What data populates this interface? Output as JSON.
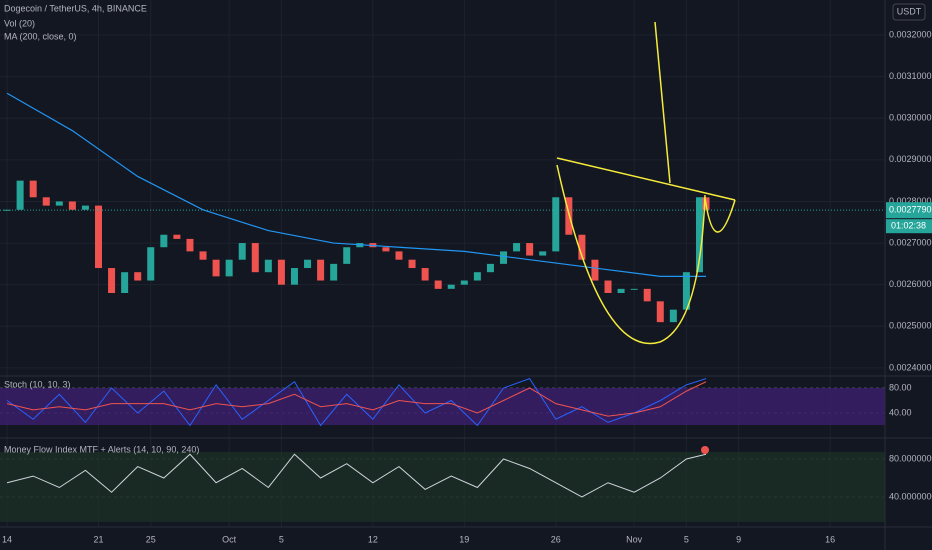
{
  "chart_data": [
    {
      "type": "candlestick",
      "title": "Dogecoin / TetherUS, 4h, BINANCE",
      "legend": [
        "Vol (20)",
        "MA (200, close, 0)"
      ],
      "currency": "USDT",
      "last_price": {
        "value": 0.002779,
        "label": "0.0027790"
      },
      "countdown": "01:02:38",
      "up_color": "#26a69a",
      "down_color": "#ef5350",
      "x": [
        0,
        1,
        2,
        3,
        4,
        5,
        6,
        7,
        8,
        9,
        10,
        11,
        12,
        13,
        14,
        15,
        16,
        17,
        18,
        19,
        20,
        21,
        22,
        23,
        24,
        25,
        26,
        27,
        28,
        29,
        30,
        31,
        32,
        33,
        34,
        35,
        36,
        37,
        38,
        39,
        40,
        41,
        42,
        43,
        44,
        45,
        46,
        47,
        48,
        49,
        50,
        51,
        52,
        53,
        53.5
      ],
      "close": [
        0.00278,
        0.00285,
        0.00281,
        0.00279,
        0.0028,
        0.00278,
        0.00279,
        0.00264,
        0.00258,
        0.00263,
        0.00261,
        0.00269,
        0.00272,
        0.00271,
        0.00268,
        0.00266,
        0.00262,
        0.00266,
        0.0027,
        0.00263,
        0.00266,
        0.0026,
        0.00264,
        0.00266,
        0.00261,
        0.00265,
        0.00269,
        0.0027,
        0.00269,
        0.00268,
        0.00266,
        0.00264,
        0.00261,
        0.00259,
        0.0026,
        0.00261,
        0.00263,
        0.00265,
        0.00268,
        0.0027,
        0.00267,
        0.00268,
        0.00281,
        0.00272,
        0.00266,
        0.00261,
        0.00258,
        0.00259,
        0.00259,
        0.00256,
        0.00251,
        0.00254,
        0.00263,
        0.00281,
        0.00278
      ],
      "ma": {
        "color": "#2196f3",
        "x": [
          0,
          5,
          10,
          15,
          20,
          25,
          30,
          35,
          40,
          45,
          50,
          53.5
        ],
        "values": [
          0.00306,
          0.00297,
          0.00286,
          0.00278,
          0.00273,
          0.0027,
          0.00269,
          0.00268,
          0.00266,
          0.00264,
          0.00262,
          0.00262
        ]
      },
      "xlim": [
        -0.54,
        67.2
      ],
      "ylim": [
        0.002383,
        0.003284
      ],
      "xticks": [
        {
          "value": 0,
          "label": "14"
        },
        {
          "value": 7,
          "label": "21"
        },
        {
          "value": 11,
          "label": "25"
        },
        {
          "value": 17,
          "label": "Oct"
        },
        {
          "value": 21,
          "label": "5"
        },
        {
          "value": 28,
          "label": "12"
        },
        {
          "value": 35,
          "label": "19"
        },
        {
          "value": 42,
          "label": "26"
        },
        {
          "value": 48,
          "label": "Nov"
        },
        {
          "value": 52,
          "label": "5"
        },
        {
          "value": 56,
          "label": "9"
        },
        {
          "value": 63,
          "label": "16"
        }
      ],
      "yticks": [
        {
          "value": 0.0024,
          "label": "0.0024000"
        },
        {
          "value": 0.0025,
          "label": "0.0025000"
        },
        {
          "value": 0.0026,
          "label": "0.0026000"
        },
        {
          "value": 0.0027,
          "label": "0.0027000"
        },
        {
          "value": 0.0028,
          "label": "0.0028000"
        },
        {
          "value": 0.0029,
          "label": "0.0029000"
        },
        {
          "value": 0.003,
          "label": "0.0030000"
        },
        {
          "value": 0.0031,
          "label": "0.0031000"
        },
        {
          "value": 0.0032,
          "label": "0.0032000"
        }
      ]
    },
    {
      "type": "line",
      "title": "Stoch (10, 10, 3)",
      "xlim": [
        -0.54,
        67.2
      ],
      "ylim": [
        1.6,
        97.6
      ],
      "yticks": [
        {
          "value": 40,
          "label": "40.00"
        },
        {
          "value": 80,
          "label": "80.00"
        }
      ],
      "x": [
        0,
        2,
        4,
        6,
        8,
        10,
        12,
        14,
        16,
        18,
        20,
        22,
        24,
        26,
        28,
        30,
        32,
        34,
        36,
        38,
        40,
        42,
        44,
        46,
        48,
        50,
        52,
        53.5
      ],
      "series": [
        {
          "color": "#2962ff",
          "values": [
            60,
            30,
            70,
            25,
            80,
            40,
            75,
            20,
            85,
            30,
            60,
            90,
            20,
            70,
            30,
            85,
            40,
            60,
            20,
            80,
            95,
            30,
            50,
            25,
            40,
            60,
            85,
            95
          ]
        },
        {
          "color": "#ef5350",
          "values": [
            55,
            45,
            50,
            45,
            55,
            55,
            55,
            45,
            55,
            50,
            55,
            70,
            50,
            55,
            45,
            60,
            55,
            55,
            40,
            60,
            80,
            55,
            45,
            35,
            40,
            50,
            75,
            90
          ]
        }
      ]
    },
    {
      "type": "line",
      "title": "Money Flow Index MTF + Alerts (14, 10, 90, 240)",
      "xlim": [
        -0.54,
        67.2
      ],
      "ylim": [
        8.4,
        100
      ],
      "yticks": [
        {
          "value": 40,
          "label": "40.0000000"
        },
        {
          "value": 80,
          "label": "80.0000000"
        }
      ],
      "x": [
        0,
        2,
        4,
        6,
        8,
        10,
        12,
        14,
        16,
        18,
        20,
        22,
        24,
        26,
        28,
        30,
        32,
        34,
        36,
        38,
        40,
        42,
        44,
        46,
        48,
        50,
        52,
        53.5
      ],
      "series": [
        {
          "color": "#d1d4dc",
          "values": [
            55,
            62,
            50,
            68,
            45,
            72,
            60,
            85,
            55,
            70,
            50,
            85,
            60,
            75,
            55,
            72,
            48,
            62,
            50,
            80,
            70,
            55,
            40,
            55,
            45,
            60,
            80,
            85
          ]
        }
      ]
    }
  ]
}
